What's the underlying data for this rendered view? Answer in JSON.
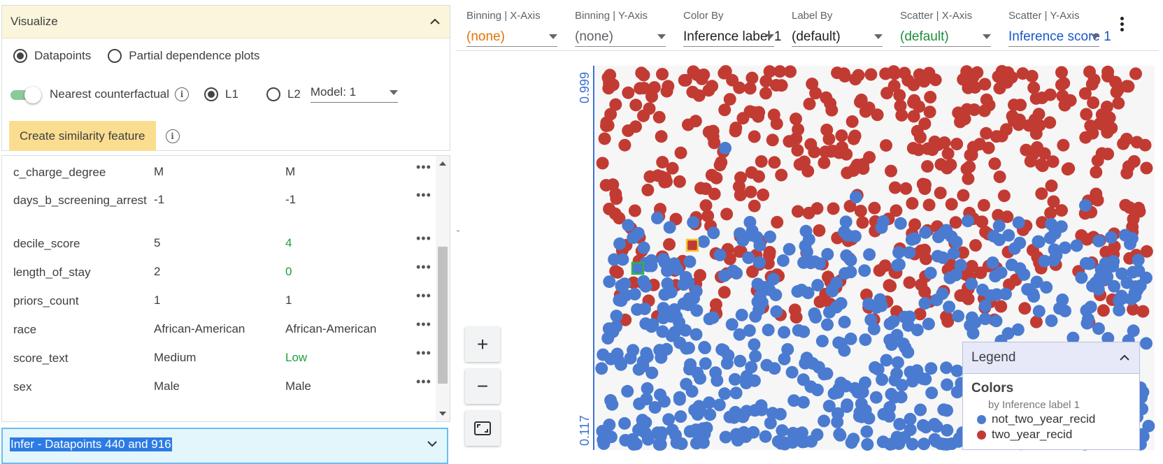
{
  "visualize": {
    "title": "Visualize",
    "modes": [
      {
        "label": "Datapoints",
        "selected": true
      },
      {
        "label": "Partial dependence plots",
        "selected": false
      }
    ],
    "counterfactual_label": "Nearest counterfactual",
    "distance_options": [
      {
        "label": "L1",
        "selected": true
      },
      {
        "label": "L2",
        "selected": false
      }
    ],
    "model_select": "Model: 1",
    "similarity_button": "Create similarity feature"
  },
  "features": [
    {
      "name": "c_charge_degree",
      "value": "M",
      "counterfactual": "M",
      "changed": false
    },
    {
      "name": "days_b_screening_arrest",
      "value": "-1",
      "counterfactual": "-1",
      "changed": false
    },
    {
      "name": "decile_score",
      "value": "5",
      "counterfactual": "4",
      "changed": true
    },
    {
      "name": "length_of_stay",
      "value": "2",
      "counterfactual": "0",
      "changed": true
    },
    {
      "name": "priors_count",
      "value": "1",
      "counterfactual": "1",
      "changed": false
    },
    {
      "name": "race",
      "value": "African-American",
      "counterfactual": "African-American",
      "changed": false
    },
    {
      "name": "score_text",
      "value": "Medium",
      "counterfactual": "Low",
      "changed": true
    },
    {
      "name": "sex",
      "value": "Male",
      "counterfactual": "Male",
      "changed": false
    }
  ],
  "infer_bar": {
    "label": "Infer - Datapoints 440 and 916"
  },
  "toolbar": [
    {
      "label": "Binning | X-Axis",
      "value": "(none)",
      "color": "#e37400"
    },
    {
      "label": "Binning | Y-Axis",
      "value": "(none)",
      "color": "#5f6368"
    },
    {
      "label": "Color By",
      "value": "Inference label 1",
      "color": "#202124"
    },
    {
      "label": "Label By",
      "value": "(default)",
      "color": "#202124"
    },
    {
      "label": "Scatter | X-Axis",
      "value": "(default)",
      "color": "#1e8e3e"
    },
    {
      "label": "Scatter | Y-Axis",
      "value": "Inference score 1",
      "color": "#1a56c8"
    }
  ],
  "plot": {
    "y_max_label": "0.999",
    "y_min_label": "0.117",
    "colors": {
      "not_two_year_recid": "#4a7bd0",
      "two_year_recid": "#c23b33",
      "selected_green": "#2fb344",
      "selected_yellow": "#f3c92d"
    }
  },
  "chart_data": {
    "type": "scatter",
    "title": "",
    "xlabel": "(default)",
    "ylabel": "Inference score 1",
    "ylim": [
      0.117,
      0.999
    ],
    "series": [
      {
        "name": "not_two_year_recid",
        "color": "#4a7bd0"
      },
      {
        "name": "two_year_recid",
        "color": "#c23b33"
      }
    ]
  },
  "legend": {
    "header": "Legend",
    "title": "Colors",
    "subtitle": "by Inference label 1",
    "items": [
      {
        "label": "not_two_year_recid",
        "color": "#4a7bd0"
      },
      {
        "label": "two_year_recid",
        "color": "#c23b33"
      }
    ]
  }
}
